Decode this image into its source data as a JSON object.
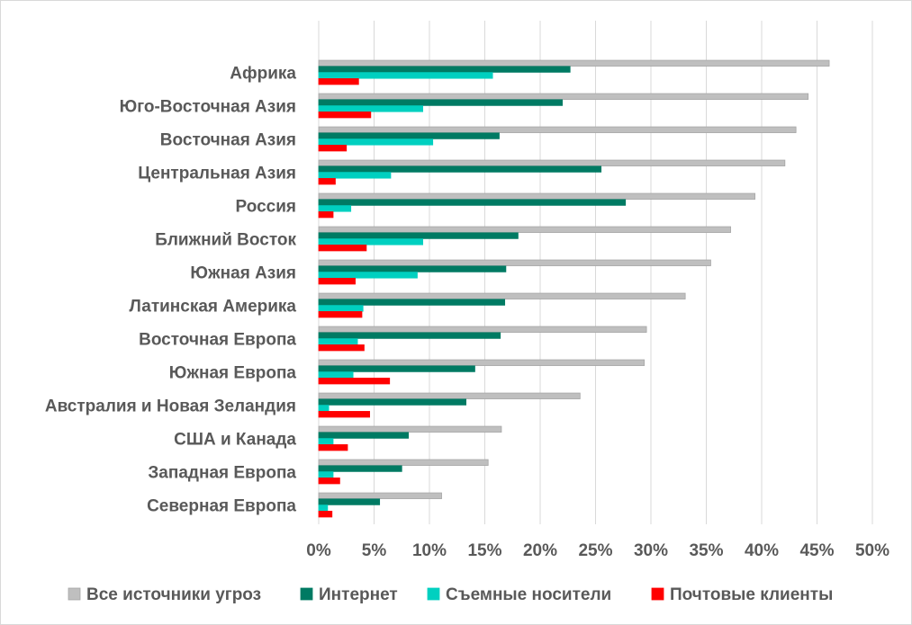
{
  "chart_data": {
    "type": "bar",
    "orientation": "horizontal",
    "categories": [
      "Африка",
      "Юго-Восточная Азия",
      "Восточная Азия",
      "Центральная Азия",
      "Россия",
      "Ближний Восток",
      "Южная Азия",
      "Латинская Америка",
      "Восточная Европа",
      "Южная Европа",
      "Австралия и Новая Зеландия",
      "США и Канада",
      "Западная Европа",
      "Северная Европа"
    ],
    "series": [
      {
        "name": "Все источники угроз",
        "color": "#bfbfbf",
        "border": "#a6a6a6",
        "values": [
          46.1,
          44.2,
          43.1,
          42.1,
          39.4,
          37.2,
          35.4,
          33.1,
          29.6,
          29.4,
          23.6,
          16.5,
          15.3,
          11.1
        ]
      },
      {
        "name": "Интернет",
        "color": "#007a63",
        "border": "#007a63",
        "values": [
          22.7,
          22.0,
          16.3,
          25.5,
          27.7,
          18.0,
          16.9,
          16.8,
          16.4,
          14.1,
          13.3,
          8.1,
          7.5,
          5.5
        ]
      },
      {
        "name": "Съемные носители",
        "color": "#00d0c0",
        "border": "#00d0c0",
        "values": [
          15.7,
          9.4,
          10.3,
          6.5,
          2.9,
          9.4,
          8.9,
          4.0,
          3.5,
          3.1,
          0.9,
          1.3,
          1.3,
          0.8
        ]
      },
      {
        "name": "Почтовые клиенты",
        "color": "#ff0000",
        "border": "#ff0000",
        "values": [
          3.6,
          4.7,
          2.5,
          1.5,
          1.3,
          4.3,
          3.3,
          3.9,
          4.1,
          6.4,
          4.6,
          2.6,
          1.9,
          1.2
        ]
      }
    ],
    "xlim": [
      0,
      50
    ],
    "x_ticks": [
      "0%",
      "5%",
      "10%",
      "15%",
      "20%",
      "25%",
      "30%",
      "35%",
      "40%",
      "45%",
      "50%"
    ],
    "grid": true,
    "legend_position": "bottom",
    "title": "",
    "xlabel": "",
    "ylabel": ""
  }
}
